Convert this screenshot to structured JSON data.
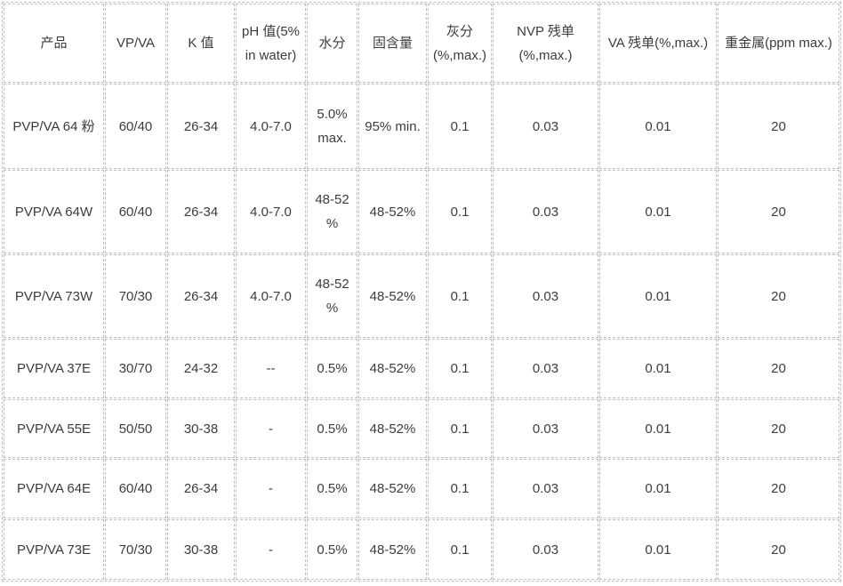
{
  "table": {
    "columns": [
      {
        "label": "产品"
      },
      {
        "label": "VP/VA"
      },
      {
        "label": "K 值"
      },
      {
        "label": "pH 值(5%\nin water)"
      },
      {
        "label": "水分"
      },
      {
        "label": "固含量"
      },
      {
        "label": "灰分\n(%,max.)"
      },
      {
        "label": "NVP 残单\n(%,max.)"
      },
      {
        "label": "VA 残单(%,max.)"
      },
      {
        "label": "重金属(ppm max.)"
      }
    ],
    "rows": [
      [
        "PVP/VA 64 粉",
        "60/40",
        "26-34",
        "4.0-7.0",
        "5.0%\nmax.",
        "95% min.",
        "0.1",
        "0.03",
        "0.01",
        "20"
      ],
      [
        "PVP/VA 64W",
        "60/40",
        "26-34",
        "4.0-7.0",
        "48-52\n%",
        "48-52%",
        "0.1",
        "0.03",
        "0.01",
        "20"
      ],
      [
        "PVP/VA 73W",
        "70/30",
        "26-34",
        "4.0-7.0",
        "48-52\n%",
        "48-52%",
        "0.1",
        "0.03",
        "0.01",
        "20"
      ],
      [
        "PVP/VA 37E",
        "30/70",
        "24-32",
        "--",
        "0.5%",
        "48-52%",
        "0.1",
        "0.03",
        "0.01",
        "20"
      ],
      [
        "PVP/VA 55E",
        "50/50",
        "30-38",
        "-",
        "0.5%",
        "48-52%",
        "0.1",
        "0.03",
        "0.01",
        "20"
      ],
      [
        "PVP/VA 64E",
        "60/40",
        "26-34",
        "-",
        "0.5%",
        "48-52%",
        "0.1",
        "0.03",
        "0.01",
        "20"
      ],
      [
        "PVP/VA 73E",
        "70/30",
        "30-38",
        "-",
        "0.5%",
        "48-52%",
        "0.1",
        "0.03",
        "0.01",
        "20"
      ]
    ]
  }
}
